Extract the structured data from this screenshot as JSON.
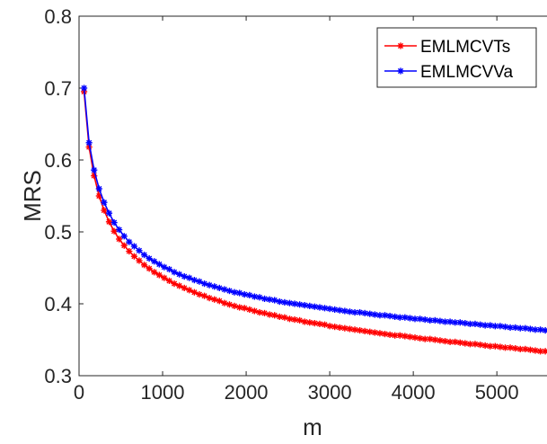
{
  "chart_data": {
    "type": "line",
    "title": "",
    "xlabel": "m",
    "ylabel": "MRS",
    "xlim": [
      0,
      5600
    ],
    "ylim": [
      0.3,
      0.8
    ],
    "xticks": [
      0,
      1000,
      2000,
      3000,
      4000,
      5000
    ],
    "xtick_labels": [
      "0",
      "1000",
      "2000",
      "3000",
      "4000",
      "5000"
    ],
    "yticks": [
      0.3,
      0.4,
      0.5,
      0.6,
      0.7,
      0.8
    ],
    "ytick_labels": [
      "0.3",
      "0.4",
      "0.5",
      "0.6",
      "0.7",
      "0.8"
    ],
    "grid": false,
    "legend_position": "top-right",
    "x": [
      60,
      120,
      180,
      240,
      300,
      360,
      420,
      480,
      540,
      600,
      660,
      720,
      780,
      840,
      900,
      960,
      1020,
      1080,
      1140,
      1200,
      1260,
      1320,
      1380,
      1440,
      1500,
      1560,
      1620,
      1680,
      1740,
      1800,
      1860,
      1920,
      1980,
      2040,
      2100,
      2160,
      2220,
      2280,
      2340,
      2400,
      2460,
      2520,
      2580,
      2640,
      2700,
      2760,
      2820,
      2880,
      2940,
      3000,
      3060,
      3120,
      3180,
      3240,
      3300,
      3360,
      3420,
      3480,
      3540,
      3600,
      3660,
      3720,
      3780,
      3840,
      3900,
      3960,
      4020,
      4080,
      4140,
      4200,
      4260,
      4320,
      4380,
      4440,
      4500,
      4560,
      4620,
      4680,
      4740,
      4800,
      4860,
      4920,
      4980,
      5040,
      5100,
      5160,
      5220,
      5280,
      5340,
      5400,
      5460,
      5520,
      5580
    ],
    "series": [
      {
        "name": "EMLMCVTs",
        "color": "#ff0000",
        "values": [
          0.695,
          0.618,
          0.578,
          0.55,
          0.53,
          0.514,
          0.501,
          0.49,
          0.481,
          0.473,
          0.466,
          0.46,
          0.454,
          0.449,
          0.444,
          0.44,
          0.436,
          0.432,
          0.428,
          0.425,
          0.422,
          0.419,
          0.416,
          0.413,
          0.411,
          0.408,
          0.406,
          0.404,
          0.401,
          0.399,
          0.397,
          0.395,
          0.394,
          0.392,
          0.39,
          0.388,
          0.387,
          0.385,
          0.384,
          0.382,
          0.381,
          0.379,
          0.378,
          0.377,
          0.375,
          0.374,
          0.373,
          0.372,
          0.371,
          0.369,
          0.368,
          0.367,
          0.366,
          0.365,
          0.364,
          0.363,
          0.362,
          0.361,
          0.36,
          0.359,
          0.358,
          0.357,
          0.356,
          0.356,
          0.355,
          0.354,
          0.353,
          0.352,
          0.351,
          0.351,
          0.35,
          0.349,
          0.348,
          0.347,
          0.347,
          0.346,
          0.345,
          0.344,
          0.344,
          0.343,
          0.342,
          0.341,
          0.341,
          0.34,
          0.339,
          0.339,
          0.338,
          0.337,
          0.337,
          0.336,
          0.335,
          0.334,
          0.334
        ]
      },
      {
        "name": "EMLMCVVa",
        "color": "#0000ff",
        "values": [
          0.7,
          0.624,
          0.586,
          0.56,
          0.541,
          0.526,
          0.513,
          0.503,
          0.494,
          0.486,
          0.48,
          0.474,
          0.468,
          0.463,
          0.459,
          0.455,
          0.451,
          0.448,
          0.444,
          0.441,
          0.438,
          0.436,
          0.433,
          0.431,
          0.428,
          0.426,
          0.424,
          0.422,
          0.42,
          0.418,
          0.416,
          0.415,
          0.413,
          0.412,
          0.41,
          0.409,
          0.407,
          0.406,
          0.405,
          0.403,
          0.402,
          0.401,
          0.4,
          0.399,
          0.398,
          0.397,
          0.396,
          0.395,
          0.394,
          0.393,
          0.392,
          0.391,
          0.39,
          0.389,
          0.388,
          0.388,
          0.387,
          0.386,
          0.385,
          0.384,
          0.384,
          0.383,
          0.382,
          0.381,
          0.381,
          0.38,
          0.379,
          0.379,
          0.378,
          0.377,
          0.377,
          0.376,
          0.375,
          0.375,
          0.374,
          0.374,
          0.373,
          0.372,
          0.372,
          0.371,
          0.37,
          0.37,
          0.369,
          0.369,
          0.368,
          0.367,
          0.367,
          0.366,
          0.366,
          0.365,
          0.364,
          0.364,
          0.363
        ]
      }
    ]
  }
}
